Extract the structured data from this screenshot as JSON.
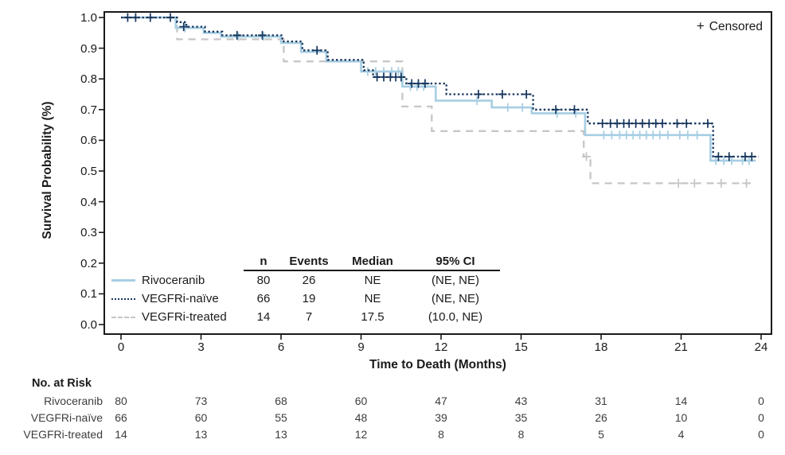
{
  "censored": {
    "marker": "+",
    "label": "Censored"
  },
  "y_axis": {
    "title": "Survival Probability (%)",
    "tick_labels": [
      "1.0",
      "0.9",
      "0.8",
      "0.7",
      "0.6",
      "0.5",
      "0.4",
      "0.3",
      "0.2",
      "0.1",
      "0.0"
    ]
  },
  "x_axis": {
    "title": "Time to Death (Months)",
    "tick_labels": [
      "0",
      "3",
      "6",
      "9",
      "12",
      "15",
      "18",
      "21",
      "24"
    ]
  },
  "legend": {
    "headers": {
      "n": "n",
      "events": "Events",
      "median": "Median",
      "ci": "95% CI"
    },
    "rows": [
      {
        "name": "Rivoceranib",
        "n": "80",
        "events": "26",
        "median": "NE",
        "ci": "(NE, NE)",
        "color": "#a6cee3",
        "dash": "solid"
      },
      {
        "name": "VEGFRi-naïve",
        "n": "66",
        "events": "19",
        "median": "NE",
        "ci": "(NE, NE)",
        "color": "#17365d",
        "dash": "dotted"
      },
      {
        "name": "VEGFRi-treated",
        "n": "14",
        "events": "7",
        "median": "17.5",
        "ci": "(10.0, NE)",
        "color": "#c6c6c6",
        "dash": "dashed"
      }
    ]
  },
  "risk_table": {
    "title": "No. at Risk",
    "rows": [
      {
        "name": "Rivoceranib",
        "values": [
          "80",
          "73",
          "68",
          "60",
          "47",
          "43",
          "31",
          "14",
          "0"
        ]
      },
      {
        "name": "VEGFRi-naïve",
        "values": [
          "66",
          "60",
          "55",
          "48",
          "39",
          "35",
          "26",
          "10",
          "0"
        ]
      },
      {
        "name": "VEGFRi-treated",
        "values": [
          "14",
          "13",
          "13",
          "12",
          "8",
          "8",
          "5",
          "4",
          "0"
        ]
      }
    ]
  },
  "chart_data": {
    "type": "line",
    "subtype": "kaplan-meier-step",
    "title": "",
    "xlabel": "Time to Death (Months)",
    "ylabel": "Survival Probability (%)",
    "xlim": [
      0,
      24
    ],
    "ylim": [
      0.0,
      1.0
    ],
    "x_ticks": [
      0,
      3,
      6,
      9,
      12,
      15,
      18,
      21,
      24
    ],
    "y_ticks": [
      1.0,
      0.9,
      0.8,
      0.7,
      0.6,
      0.5,
      0.4,
      0.3,
      0.2,
      0.1,
      0.0
    ],
    "grid": false,
    "legend_position": "lower-left-table",
    "series": [
      {
        "name": "VEGFRi-treated",
        "color": "#c6c6c6",
        "dash": "dashed",
        "start": [
          0,
          1.0
        ],
        "end_x": 23.6,
        "steps": [
          [
            2.1,
            0.929
          ],
          [
            6.1,
            0.857
          ],
          [
            10.55,
            0.71
          ],
          [
            11.65,
            0.63
          ],
          [
            17.35,
            0.547
          ],
          [
            17.6,
            0.46
          ]
        ],
        "censors": [
          [
            17.45,
            0.547
          ],
          [
            20.9,
            0.46
          ],
          [
            21.5,
            0.46
          ],
          [
            22.5,
            0.46
          ],
          [
            23.45,
            0.46
          ]
        ]
      },
      {
        "name": "Rivoceranib",
        "color": "#a6cee3",
        "dash": "solid",
        "start": [
          0,
          1.0
        ],
        "end_x": 23.8,
        "steps": [
          [
            2.05,
            0.966
          ],
          [
            3.1,
            0.95
          ],
          [
            3.75,
            0.938
          ],
          [
            6.0,
            0.917
          ],
          [
            6.75,
            0.888
          ],
          [
            7.7,
            0.857
          ],
          [
            9.0,
            0.824
          ],
          [
            10.55,
            0.775
          ],
          [
            11.8,
            0.729
          ],
          [
            13.9,
            0.707
          ],
          [
            15.4,
            0.688
          ],
          [
            17.4,
            0.617
          ],
          [
            22.1,
            0.534
          ]
        ],
        "censors": [
          [
            2.4,
            0.966
          ],
          [
            4.4,
            0.938
          ],
          [
            5.35,
            0.938
          ],
          [
            9.25,
            0.824
          ],
          [
            9.55,
            0.824
          ],
          [
            9.85,
            0.824
          ],
          [
            10.15,
            0.824
          ],
          [
            10.4,
            0.824
          ],
          [
            10.85,
            0.775
          ],
          [
            11.1,
            0.775
          ],
          [
            11.35,
            0.775
          ],
          [
            13.35,
            0.729
          ],
          [
            14.5,
            0.707
          ],
          [
            15.05,
            0.707
          ],
          [
            16.35,
            0.688
          ],
          [
            17.05,
            0.688
          ],
          [
            18.1,
            0.617
          ],
          [
            18.4,
            0.617
          ],
          [
            18.7,
            0.617
          ],
          [
            18.95,
            0.617
          ],
          [
            19.2,
            0.617
          ],
          [
            19.45,
            0.617
          ],
          [
            19.7,
            0.617
          ],
          [
            19.95,
            0.617
          ],
          [
            20.2,
            0.617
          ],
          [
            20.5,
            0.617
          ],
          [
            20.95,
            0.617
          ],
          [
            21.25,
            0.617
          ],
          [
            21.6,
            0.617
          ],
          [
            22.3,
            0.534
          ],
          [
            22.6,
            0.534
          ],
          [
            22.9,
            0.534
          ],
          [
            23.3,
            0.534
          ],
          [
            23.55,
            0.534
          ]
        ]
      },
      {
        "name": "VEGFRi-naïve",
        "color": "#17365d",
        "dash": "dotted",
        "start": [
          0,
          1.0
        ],
        "end_x": 23.9,
        "steps": [
          [
            2.1,
            0.985
          ],
          [
            2.45,
            0.97
          ],
          [
            3.15,
            0.954
          ],
          [
            3.8,
            0.942
          ],
          [
            6.05,
            0.922
          ],
          [
            6.8,
            0.893
          ],
          [
            7.75,
            0.862
          ],
          [
            9.1,
            0.828
          ],
          [
            9.45,
            0.806
          ],
          [
            10.7,
            0.785
          ],
          [
            12.2,
            0.75
          ],
          [
            15.45,
            0.7
          ],
          [
            17.5,
            0.655
          ],
          [
            22.2,
            0.547
          ]
        ],
        "censors": [
          [
            0.25,
            1.0
          ],
          [
            0.55,
            1.0
          ],
          [
            1.1,
            1.0
          ],
          [
            1.85,
            1.0
          ],
          [
            2.35,
            0.97
          ],
          [
            4.35,
            0.942
          ],
          [
            5.3,
            0.942
          ],
          [
            7.35,
            0.893
          ],
          [
            9.6,
            0.806
          ],
          [
            9.85,
            0.806
          ],
          [
            10.1,
            0.806
          ],
          [
            10.3,
            0.806
          ],
          [
            10.5,
            0.806
          ],
          [
            10.9,
            0.785
          ],
          [
            11.15,
            0.785
          ],
          [
            11.4,
            0.785
          ],
          [
            13.4,
            0.75
          ],
          [
            14.3,
            0.75
          ],
          [
            15.2,
            0.75
          ],
          [
            16.3,
            0.7
          ],
          [
            17.0,
            0.7
          ],
          [
            18.05,
            0.655
          ],
          [
            18.35,
            0.655
          ],
          [
            18.6,
            0.655
          ],
          [
            18.85,
            0.655
          ],
          [
            19.05,
            0.655
          ],
          [
            19.3,
            0.655
          ],
          [
            19.55,
            0.655
          ],
          [
            19.8,
            0.655
          ],
          [
            20.05,
            0.655
          ],
          [
            20.3,
            0.655
          ],
          [
            20.85,
            0.655
          ],
          [
            21.2,
            0.655
          ],
          [
            22.0,
            0.655
          ],
          [
            22.4,
            0.547
          ],
          [
            22.8,
            0.547
          ],
          [
            23.4,
            0.547
          ],
          [
            23.65,
            0.547
          ]
        ]
      }
    ]
  }
}
